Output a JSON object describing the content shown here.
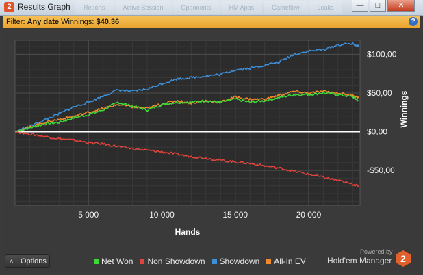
{
  "window": {
    "title": "Results Graph",
    "background_tabs": [
      "Reports",
      "Active Session",
      "Opponents",
      "HM Apps",
      "Gameflow",
      "Leaks"
    ],
    "minimize_glyph": "—",
    "maximize_glyph": "□",
    "close_glyph": "✕"
  },
  "filter": {
    "prefix": "Filter: ",
    "date_value": "Any date",
    "winnings_label": " Winnings: ",
    "winnings_value": "$40,36",
    "help_glyph": "?"
  },
  "chart_data": {
    "type": "line",
    "xlabel": "Hands",
    "ylabel": "Winnings",
    "xlim": [
      0,
      23500
    ],
    "ylim": [
      -95,
      118
    ],
    "x_ticks": [
      5000,
      10000,
      15000,
      20000
    ],
    "x_tick_labels": [
      "5 000",
      "10 000",
      "15 000",
      "20 000"
    ],
    "y_ticks": [
      100,
      50,
      0,
      -50
    ],
    "y_tick_labels": [
      "$100,00",
      "$50,00",
      "$0,00",
      "-$50,00"
    ],
    "grid": true,
    "legend_position": "bottom",
    "zero_line_color": "#ffffff",
    "series": [
      {
        "name": "Net Won",
        "color": "#3fd93a",
        "x": [
          0,
          1000,
          2000,
          3000,
          4000,
          5000,
          6000,
          7000,
          8000,
          9000,
          10000,
          11000,
          12000,
          13000,
          14000,
          15000,
          16000,
          17000,
          18000,
          19000,
          20000,
          21000,
          22000,
          23000,
          23400
        ],
        "y": [
          0,
          5,
          10,
          12,
          18,
          22,
          28,
          38,
          33,
          28,
          35,
          38,
          38,
          40,
          38,
          42,
          38,
          40,
          44,
          48,
          48,
          50,
          48,
          45,
          40
        ]
      },
      {
        "name": "Non Showdown",
        "color": "#e0443c",
        "x": [
          0,
          1000,
          2000,
          3000,
          4000,
          5000,
          6000,
          7000,
          8000,
          9000,
          10000,
          11000,
          12000,
          13000,
          14000,
          15000,
          16000,
          17000,
          18000,
          19000,
          20000,
          21000,
          22000,
          23000,
          23400
        ],
        "y": [
          0,
          -3,
          -6,
          -9,
          -11,
          -14,
          -16,
          -19,
          -22,
          -24,
          -26,
          -29,
          -32,
          -34,
          -37,
          -39,
          -41,
          -44,
          -47,
          -51,
          -55,
          -59,
          -63,
          -68,
          -70
        ]
      },
      {
        "name": "Showdown",
        "color": "#3d8fd8",
        "x": [
          0,
          1000,
          2000,
          3000,
          4000,
          5000,
          6000,
          7000,
          8000,
          9000,
          10000,
          11000,
          12000,
          13000,
          14000,
          15000,
          16000,
          17000,
          18000,
          19000,
          20000,
          21000,
          22000,
          23000,
          23400
        ],
        "y": [
          0,
          7,
          15,
          23,
          32,
          38,
          46,
          54,
          52,
          55,
          62,
          68,
          70,
          72,
          74,
          80,
          82,
          86,
          90,
          100,
          104,
          106,
          112,
          114,
          110
        ]
      },
      {
        "name": "All-In EV",
        "color": "#ee8a2a",
        "x": [
          0,
          1000,
          2000,
          3000,
          4000,
          5000,
          6000,
          7000,
          8000,
          9000,
          10000,
          11000,
          12000,
          13000,
          14000,
          15000,
          16000,
          17000,
          18000,
          19000,
          20000,
          21000,
          22000,
          23000,
          23400
        ],
        "y": [
          0,
          6,
          12,
          16,
          20,
          25,
          30,
          35,
          32,
          30,
          36,
          40,
          37,
          40,
          38,
          45,
          42,
          42,
          47,
          52,
          50,
          52,
          50,
          47,
          44
        ]
      }
    ]
  },
  "options": {
    "label": "Options",
    "chevron": "˄"
  },
  "branding": {
    "powered": "Powered by",
    "name": "Hold'em Manager",
    "logo_digit": "2"
  }
}
